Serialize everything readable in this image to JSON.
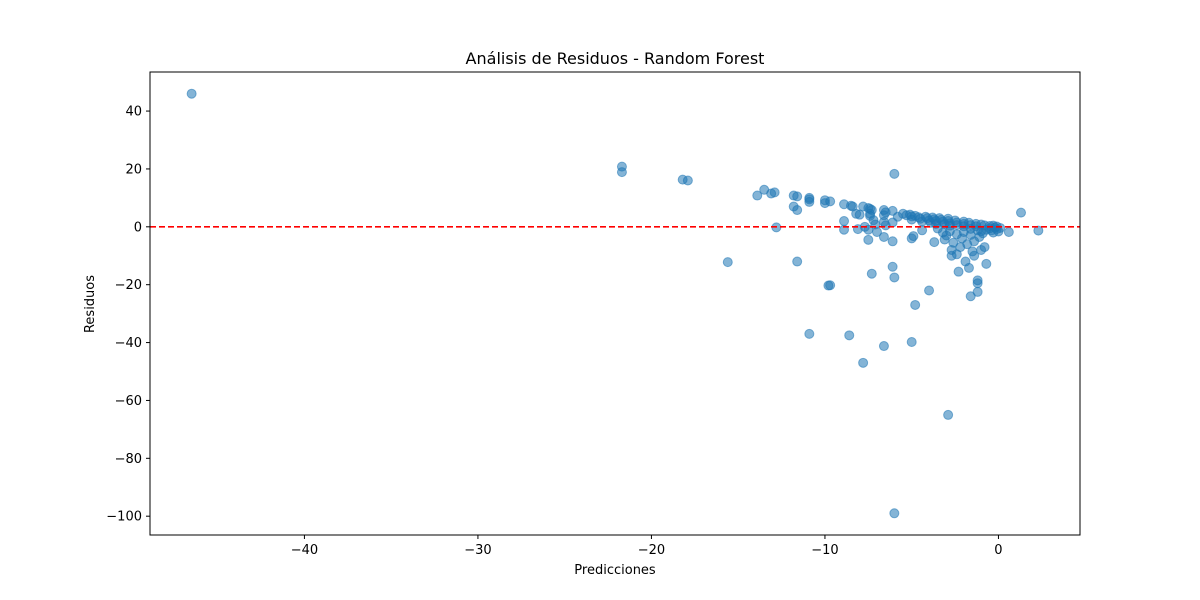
{
  "chart_data": {
    "type": "scatter",
    "title": "Análisis de Residuos - Random Forest",
    "xlabel": "Predicciones",
    "ylabel": "Residuos",
    "xlim": [
      -48.9,
      4.7
    ],
    "ylim": [
      -106.5,
      53.5
    ],
    "xticks": [
      -40,
      -30,
      -20,
      -10,
      0
    ],
    "yticks": [
      -100,
      -80,
      -60,
      -40,
      -20,
      0,
      20,
      40
    ],
    "xtick_labels": [
      "−40",
      "−30",
      "−20",
      "−10",
      "0"
    ],
    "ytick_labels": [
      "−100",
      "−80",
      "−60",
      "−40",
      "−20",
      "0",
      "20",
      "40"
    ],
    "grid": false,
    "reference_line": {
      "y": 0,
      "style": "dashed",
      "color": "#ff0000"
    },
    "point_color": "#1f77b4",
    "point_alpha": 0.55,
    "points": [
      [
        -46.5,
        46.0
      ],
      [
        -21.7,
        20.8
      ],
      [
        -21.7,
        18.9
      ],
      [
        -18.2,
        16.3
      ],
      [
        -17.9,
        16.0
      ],
      [
        -15.6,
        -12.2
      ],
      [
        -13.9,
        10.8
      ],
      [
        -13.5,
        12.8
      ],
      [
        -13.1,
        11.5
      ],
      [
        -12.9,
        11.9
      ],
      [
        -12.8,
        -0.2
      ],
      [
        -11.8,
        10.8
      ],
      [
        -11.6,
        10.5
      ],
      [
        -11.8,
        7.0
      ],
      [
        -11.6,
        5.8
      ],
      [
        -11.6,
        -12.0
      ],
      [
        -10.9,
        10.0
      ],
      [
        -10.9,
        9.5
      ],
      [
        -10.9,
        8.6
      ],
      [
        -10.9,
        -37.0
      ],
      [
        -10.0,
        9.2
      ],
      [
        -10.0,
        8.2
      ],
      [
        -9.7,
        8.8
      ],
      [
        -9.8,
        -20.3
      ],
      [
        -9.7,
        -20.2
      ],
      [
        -8.9,
        7.8
      ],
      [
        -8.9,
        2.0
      ],
      [
        -8.9,
        -1.0
      ],
      [
        -8.6,
        -37.5
      ],
      [
        -8.5,
        7.3
      ],
      [
        -8.4,
        7.0
      ],
      [
        -8.2,
        4.5
      ],
      [
        -8.0,
        4.2
      ],
      [
        -8.1,
        -0.8
      ],
      [
        -7.8,
        7.0
      ],
      [
        -7.7,
        0.0
      ],
      [
        -7.8,
        -47.0
      ],
      [
        -7.5,
        6.5
      ],
      [
        -7.4,
        6.2
      ],
      [
        -7.4,
        4.5
      ],
      [
        -7.4,
        3.8
      ],
      [
        -7.5,
        -1.0
      ],
      [
        -7.5,
        -4.5
      ],
      [
        -7.3,
        -16.2
      ],
      [
        -7.3,
        5.8
      ],
      [
        -7.2,
        2.3
      ],
      [
        -7.1,
        0.8
      ],
      [
        -7.0,
        -1.8
      ],
      [
        -6.6,
        5.8
      ],
      [
        -6.5,
        5.0
      ],
      [
        -6.6,
        4.0
      ],
      [
        -6.6,
        1.7
      ],
      [
        -6.5,
        0.5
      ],
      [
        -6.6,
        -3.5
      ],
      [
        -6.6,
        -41.2
      ],
      [
        -6.1,
        5.5
      ],
      [
        -6.0,
        18.3
      ],
      [
        -6.1,
        1.5
      ],
      [
        -6.1,
        -5.0
      ],
      [
        -6.1,
        -13.8
      ],
      [
        -6.0,
        -17.5
      ],
      [
        -6.0,
        -99.0
      ],
      [
        -5.8,
        3.5
      ],
      [
        -5.5,
        4.5
      ],
      [
        -5.3,
        4.0
      ],
      [
        -5.1,
        4.2
      ],
      [
        -5.0,
        3.6
      ],
      [
        -5.0,
        2.5
      ],
      [
        -5.0,
        -4.0
      ],
      [
        -4.9,
        -3.2
      ],
      [
        -5.0,
        -39.8
      ],
      [
        -4.8,
        -27.0
      ],
      [
        -4.8,
        3.8
      ],
      [
        -4.6,
        3.3
      ],
      [
        -4.5,
        2.8
      ],
      [
        -4.4,
        1.8
      ],
      [
        -4.4,
        -1.2
      ],
      [
        -4.2,
        3.5
      ],
      [
        -4.1,
        3.0
      ],
      [
        -4.0,
        2.2
      ],
      [
        -3.9,
        1.4
      ],
      [
        -4.0,
        -22.0
      ],
      [
        -3.8,
        3.2
      ],
      [
        -3.7,
        2.6
      ],
      [
        -3.6,
        2.0
      ],
      [
        -3.6,
        1.0
      ],
      [
        -3.7,
        -5.3
      ],
      [
        -3.5,
        -0.6
      ],
      [
        -3.4,
        3.0
      ],
      [
        -3.3,
        2.4
      ],
      [
        -3.2,
        1.8
      ],
      [
        -3.1,
        1.0
      ],
      [
        -3.2,
        -2.0
      ],
      [
        -3.1,
        -4.4
      ],
      [
        -3.0,
        -3.0
      ],
      [
        -2.9,
        2.8
      ],
      [
        -2.9,
        2.0
      ],
      [
        -2.8,
        1.2
      ],
      [
        -2.8,
        0.4
      ],
      [
        -2.8,
        -1.5
      ],
      [
        -2.9,
        -65.0
      ],
      [
        -2.7,
        -8.0
      ],
      [
        -2.7,
        -10.0
      ],
      [
        -2.6,
        -5.5
      ],
      [
        -2.5,
        2.2
      ],
      [
        -2.4,
        1.5
      ],
      [
        -2.4,
        0.6
      ],
      [
        -2.4,
        -2.6
      ],
      [
        -2.4,
        -9.5
      ],
      [
        -2.3,
        -15.5
      ],
      [
        -2.2,
        -7.0
      ],
      [
        -2.1,
        -4.0
      ],
      [
        -2.0,
        1.8
      ],
      [
        -2.0,
        1.0
      ],
      [
        -2.0,
        0.2
      ],
      [
        -2.0,
        -1.8
      ],
      [
        -1.9,
        -12.0
      ],
      [
        -1.8,
        -6.0
      ],
      [
        -1.7,
        -14.2
      ],
      [
        -1.7,
        1.4
      ],
      [
        -1.6,
        0.6
      ],
      [
        -1.6,
        -0.7
      ],
      [
        -1.6,
        -24.0
      ],
      [
        -1.6,
        -2.8
      ],
      [
        -1.5,
        -8.5
      ],
      [
        -1.4,
        -10.0
      ],
      [
        -1.4,
        -5.0
      ],
      [
        -1.3,
        1.0
      ],
      [
        -1.3,
        0.2
      ],
      [
        -1.2,
        -1.2
      ],
      [
        -1.2,
        -18.5
      ],
      [
        -1.2,
        -19.5
      ],
      [
        -1.2,
        -22.5
      ],
      [
        -1.1,
        -3.5
      ],
      [
        -1.0,
        -1.5
      ],
      [
        -1.0,
        0.8
      ],
      [
        -1.0,
        -8.0
      ],
      [
        -0.9,
        -2.2
      ],
      [
        -0.8,
        -7.0
      ],
      [
        -0.8,
        0.5
      ],
      [
        -0.7,
        -12.8
      ],
      [
        -0.7,
        -1.0
      ],
      [
        -0.5,
        0.3
      ],
      [
        -0.5,
        -0.5
      ],
      [
        -0.4,
        -1.2
      ],
      [
        -0.3,
        0.4
      ],
      [
        -0.3,
        -2.0
      ],
      [
        -0.2,
        -0.3
      ],
      [
        -0.1,
        0.1
      ],
      [
        -0.1,
        -0.8
      ],
      [
        0.0,
        -1.6
      ],
      [
        0.1,
        -0.4
      ],
      [
        0.6,
        -1.8
      ],
      [
        1.3,
        4.9
      ],
      [
        2.3,
        -1.3
      ]
    ]
  }
}
